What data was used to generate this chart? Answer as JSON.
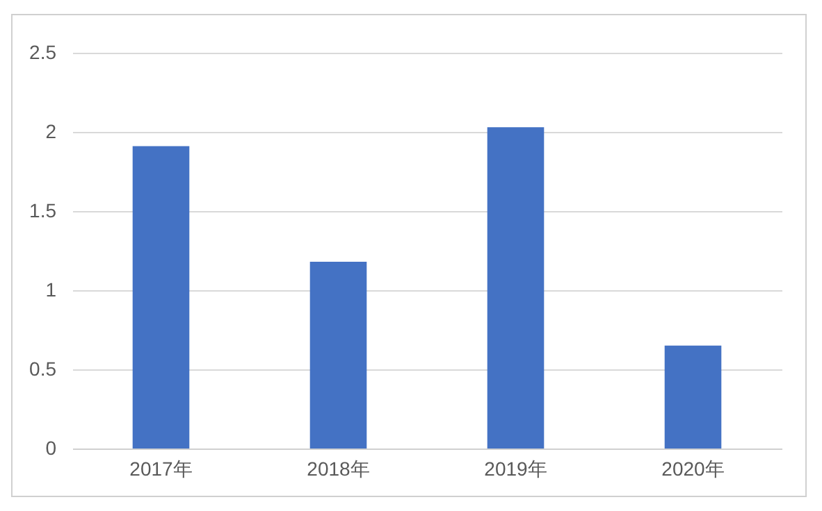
{
  "chart_data": {
    "type": "bar",
    "categories": [
      "2017年",
      "2018年",
      "2019年",
      "2020年"
    ],
    "values": [
      1.91,
      1.18,
      2.03,
      0.65
    ],
    "color": "#4472c4",
    "ylim": [
      0,
      2.5
    ],
    "yticks": [
      0,
      0.5,
      1,
      1.5,
      2,
      2.5
    ],
    "grid": "y"
  }
}
